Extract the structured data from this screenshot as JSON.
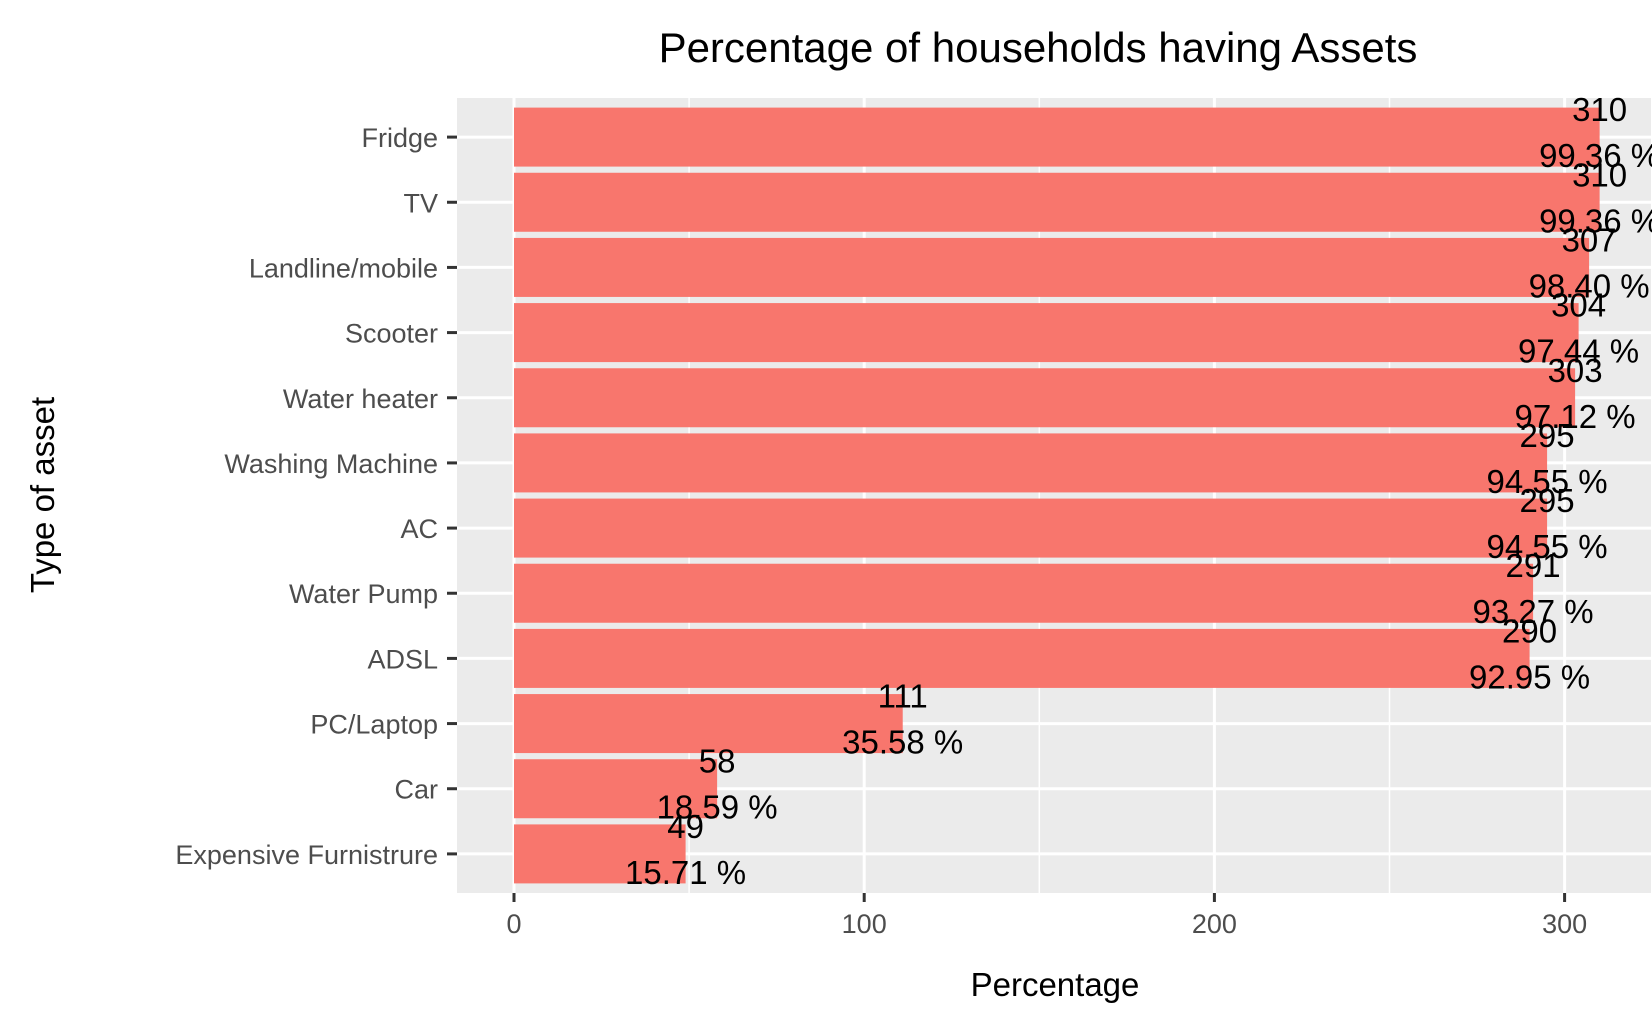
{
  "chart_data": {
    "type": "bar",
    "orientation": "horizontal",
    "title": "Percentage of households having Assets",
    "xlabel": "Percentage",
    "ylabel": "Type of asset",
    "categories": [
      "Fridge",
      "TV",
      "Landline/mobile",
      "Scooter",
      "Water heater",
      "Washing Machine",
      "AC",
      "Water Pump",
      "ADSL",
      "PC/Laptop",
      "Car",
      "Expensive Furnistrure"
    ],
    "values": [
      310,
      310,
      307,
      304,
      303,
      295,
      295,
      291,
      290,
      111,
      58,
      49
    ],
    "labels": [
      [
        "310",
        "99.36 %"
      ],
      [
        "310",
        "99.36 %"
      ],
      [
        "307",
        "98.40 %"
      ],
      [
        "304",
        "97.44 %"
      ],
      [
        "303",
        "97.12 %"
      ],
      [
        "295",
        "94.55 %"
      ],
      [
        "295",
        "94.55 %"
      ],
      [
        "291",
        "93.27 %"
      ],
      [
        "290",
        "92.95 %"
      ],
      [
        "111",
        "35.58 %"
      ],
      [
        "58",
        "18.59 %"
      ],
      [
        "49",
        "15.71 %"
      ]
    ],
    "x_ticks": [
      0,
      100,
      200,
      300
    ],
    "xlim": [
      -16,
      325
    ],
    "grid": true,
    "colors": {
      "bar": "#f8766d",
      "panel": "#ebebeb",
      "grid": "#ffffff"
    }
  }
}
